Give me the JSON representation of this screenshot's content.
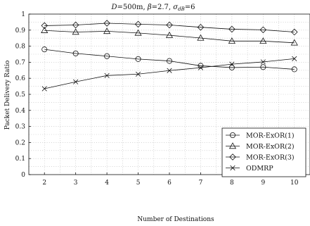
{
  "chart_data": {
    "type": "line",
    "title": "D=500m, β=2.7, σ_dB=6",
    "title_parts": {
      "d_label": "D",
      "d_value": "=500m, ",
      "beta_label": "β",
      "beta_value": "=2.7, ",
      "sigma_label": "σ",
      "sigma_sub": "dB",
      "sigma_value": "=6"
    },
    "xlabel": "Number of Destinations",
    "ylabel": "Packet Delivery Ratio",
    "x": [
      2,
      3,
      4,
      5,
      6,
      7,
      8,
      9,
      10
    ],
    "xlim": [
      1.5,
      10.5
    ],
    "ylim": [
      0,
      1
    ],
    "xticks": [
      "2",
      "3",
      "4",
      "5",
      "6",
      "7",
      "8",
      "9",
      "10"
    ],
    "yticks": [
      "0",
      "0.1",
      "0.2",
      "0.3",
      "0.4",
      "0.5",
      "0.6",
      "0.7",
      "0.8",
      "0.9",
      "1"
    ],
    "grid": true,
    "legend_position": "middle-right",
    "series": [
      {
        "name": "MOR-ExOR(1)",
        "marker": "circle",
        "values": [
          0.78,
          0.755,
          0.738,
          0.72,
          0.708,
          0.678,
          0.667,
          0.67,
          0.656
        ]
      },
      {
        "name": "MOR-ExOR(2)",
        "marker": "triangle",
        "values": [
          0.898,
          0.888,
          0.893,
          0.882,
          0.868,
          0.851,
          0.832,
          0.832,
          0.821
        ]
      },
      {
        "name": "MOR-ExOR(3)",
        "marker": "diamond",
        "values": [
          0.928,
          0.932,
          0.943,
          0.937,
          0.932,
          0.918,
          0.906,
          0.902,
          0.888
        ]
      },
      {
        "name": "ODMRP",
        "marker": "cross",
        "values": [
          0.535,
          0.578,
          0.617,
          0.626,
          0.648,
          0.666,
          0.688,
          0.702,
          0.722
        ]
      }
    ]
  }
}
